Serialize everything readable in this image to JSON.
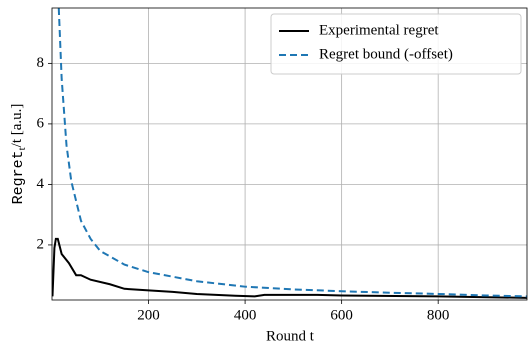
{
  "chart_data": {
    "type": "line",
    "x_label": "Round t",
    "y_label": {
      "main": "Regret",
      "sub": "t",
      "rest": "/t [a.u.]"
    },
    "xlim": [
      0,
      984
    ],
    "ylim": [
      0.18,
      9.83
    ],
    "xticks": [
      200,
      400,
      600,
      800
    ],
    "yticks": [
      2,
      4,
      6,
      8
    ],
    "grid": true,
    "legend": "upper right",
    "series": [
      {
        "name": "Experimental regret",
        "color": "#000000",
        "dash": "solid",
        "x": [
          1,
          5,
          8,
          12,
          20,
          35,
          50,
          60,
          80,
          120,
          150,
          200,
          250,
          300,
          380,
          420,
          440,
          550,
          600,
          800,
          984
        ],
        "values": [
          0.3,
          1.9,
          2.2,
          2.2,
          1.7,
          1.4,
          1.0,
          1.0,
          0.85,
          0.7,
          0.55,
          0.5,
          0.45,
          0.38,
          0.32,
          0.3,
          0.35,
          0.35,
          0.33,
          0.3,
          0.25
        ]
      },
      {
        "name": "Regret bound (-offset)",
        "color": "#1f77b4",
        "dash": "dashed",
        "x": [
          14,
          20,
          30,
          40,
          60,
          80,
          100,
          150,
          200,
          300,
          400,
          500,
          600,
          700,
          800,
          900,
          984
        ],
        "values": [
          9.83,
          7.5,
          5.3,
          4.1,
          2.8,
          2.2,
          1.8,
          1.35,
          1.1,
          0.8,
          0.62,
          0.53,
          0.47,
          0.42,
          0.38,
          0.33,
          0.3
        ]
      }
    ]
  }
}
